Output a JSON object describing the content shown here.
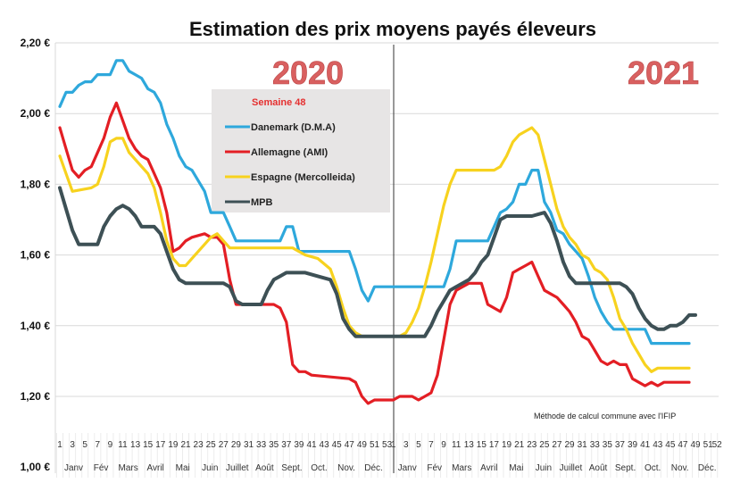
{
  "chart_data": {
    "type": "line",
    "title": "Estimation des prix moyens payés éleveurs",
    "xlabel": "",
    "ylabel": "",
    "ylim": [
      1.0,
      2.2
    ],
    "yticks": [
      "1,00 €",
      "1,20 €",
      "1,40 €",
      "1,60 €",
      "1,80 €",
      "2,00 €",
      "2,20 €"
    ],
    "grid": "horizontal",
    "legend_title": "Semaine 48",
    "legend_placement": "top-center (inside 2020 panel)",
    "annotations": {
      "year1": "2020",
      "year2": "2021",
      "note": "Méthode de calcul commune avec l'IFIP"
    },
    "x_week_labels_2020": [
      "1",
      "3",
      "5",
      "7",
      "9",
      "11",
      "13",
      "15",
      "17",
      "19",
      "21",
      "23",
      "25",
      "27",
      "29",
      "31",
      "33",
      "35",
      "37",
      "39",
      "41",
      "43",
      "45",
      "47",
      "49",
      "51",
      "53"
    ],
    "x_week_labels_2021": [
      "1",
      "3",
      "5",
      "7",
      "9",
      "11",
      "13",
      "15",
      "17",
      "19",
      "21",
      "23",
      "25",
      "27",
      "29",
      "31",
      "33",
      "35",
      "37",
      "39",
      "41",
      "43",
      "45",
      "47",
      "49",
      "51",
      "52"
    ],
    "months": [
      "Janv",
      "Fév",
      "Mars",
      "Avril",
      "Mai",
      "Juin",
      "Juillet",
      "Août",
      "Sept.",
      "Oct.",
      "Nov.",
      "Déc."
    ],
    "series": [
      {
        "name": "Danemark (D.M.A)",
        "color": "#2ea8dc",
        "2020": [
          [
            1,
            2.02
          ],
          [
            2,
            2.06
          ],
          [
            3,
            2.06
          ],
          [
            4,
            2.08
          ],
          [
            5,
            2.09
          ],
          [
            6,
            2.09
          ],
          [
            7,
            2.11
          ],
          [
            9,
            2.11
          ],
          [
            10,
            2.15
          ],
          [
            11,
            2.15
          ],
          [
            12,
            2.12
          ],
          [
            13,
            2.11
          ],
          [
            14,
            2.1
          ],
          [
            15,
            2.07
          ],
          [
            16,
            2.06
          ],
          [
            17,
            2.03
          ],
          [
            18,
            1.97
          ],
          [
            19,
            1.93
          ],
          [
            20,
            1.88
          ],
          [
            21,
            1.85
          ],
          [
            22,
            1.84
          ],
          [
            23,
            1.81
          ],
          [
            24,
            1.78
          ],
          [
            25,
            1.72
          ],
          [
            27,
            1.72
          ],
          [
            28,
            1.68
          ],
          [
            29,
            1.64
          ],
          [
            36,
            1.64
          ],
          [
            37,
            1.68
          ],
          [
            38,
            1.68
          ],
          [
            39,
            1.61
          ],
          [
            47,
            1.61
          ],
          [
            48,
            1.56
          ],
          [
            49,
            1.5
          ],
          [
            50,
            1.47
          ],
          [
            51,
            1.51
          ],
          [
            53,
            1.51
          ]
        ],
        "2021": [
          [
            1,
            1.51
          ],
          [
            9,
            1.51
          ],
          [
            10,
            1.56
          ],
          [
            11,
            1.64
          ],
          [
            16,
            1.64
          ],
          [
            17,
            1.68
          ],
          [
            18,
            1.72
          ],
          [
            19,
            1.73
          ],
          [
            20,
            1.75
          ],
          [
            21,
            1.8
          ],
          [
            22,
            1.8
          ],
          [
            23,
            1.84
          ],
          [
            24,
            1.84
          ],
          [
            25,
            1.75
          ],
          [
            26,
            1.72
          ],
          [
            27,
            1.67
          ],
          [
            28,
            1.66
          ],
          [
            29,
            1.63
          ],
          [
            30,
            1.61
          ],
          [
            31,
            1.59
          ],
          [
            32,
            1.54
          ],
          [
            33,
            1.48
          ],
          [
            34,
            1.44
          ],
          [
            35,
            1.41
          ],
          [
            36,
            1.39
          ],
          [
            41,
            1.39
          ],
          [
            42,
            1.35
          ],
          [
            48,
            1.35
          ]
        ]
      },
      {
        "name": "Allemagne (AMI)",
        "color": "#e31e24",
        "2020": [
          [
            1,
            1.96
          ],
          [
            2,
            1.9
          ],
          [
            3,
            1.84
          ],
          [
            4,
            1.82
          ],
          [
            5,
            1.84
          ],
          [
            6,
            1.85
          ],
          [
            7,
            1.89
          ],
          [
            8,
            1.93
          ],
          [
            9,
            1.99
          ],
          [
            10,
            2.03
          ],
          [
            11,
            1.98
          ],
          [
            12,
            1.93
          ],
          [
            13,
            1.9
          ],
          [
            14,
            1.88
          ],
          [
            15,
            1.87
          ],
          [
            16,
            1.83
          ],
          [
            17,
            1.79
          ],
          [
            18,
            1.72
          ],
          [
            19,
            1.61
          ],
          [
            20,
            1.62
          ],
          [
            21,
            1.64
          ],
          [
            22,
            1.65
          ],
          [
            24,
            1.66
          ],
          [
            25,
            1.65
          ],
          [
            26,
            1.65
          ],
          [
            27,
            1.63
          ],
          [
            28,
            1.53
          ],
          [
            29,
            1.46
          ],
          [
            35,
            1.46
          ],
          [
            36,
            1.45
          ],
          [
            37,
            1.41
          ],
          [
            38,
            1.29
          ],
          [
            39,
            1.27
          ],
          [
            40,
            1.27
          ],
          [
            41,
            1.26
          ],
          [
            47,
            1.25
          ],
          [
            48,
            1.24
          ],
          [
            49,
            1.2
          ],
          [
            50,
            1.18
          ],
          [
            51,
            1.19
          ],
          [
            53,
            1.19
          ]
        ],
        "2021": [
          [
            1,
            1.19
          ],
          [
            2,
            1.2
          ],
          [
            4,
            1.2
          ],
          [
            5,
            1.19
          ],
          [
            6,
            1.2
          ],
          [
            7,
            1.21
          ],
          [
            8,
            1.26
          ],
          [
            9,
            1.36
          ],
          [
            10,
            1.46
          ],
          [
            11,
            1.5
          ],
          [
            12,
            1.51
          ],
          [
            13,
            1.52
          ],
          [
            15,
            1.52
          ],
          [
            16,
            1.46
          ],
          [
            17,
            1.45
          ],
          [
            18,
            1.44
          ],
          [
            19,
            1.48
          ],
          [
            20,
            1.55
          ],
          [
            21,
            1.56
          ],
          [
            22,
            1.57
          ],
          [
            23,
            1.58
          ],
          [
            24,
            1.54
          ],
          [
            25,
            1.5
          ],
          [
            26,
            1.49
          ],
          [
            27,
            1.48
          ],
          [
            28,
            1.46
          ],
          [
            29,
            1.44
          ],
          [
            30,
            1.41
          ],
          [
            31,
            1.37
          ],
          [
            32,
            1.36
          ],
          [
            33,
            1.33
          ],
          [
            34,
            1.3
          ],
          [
            35,
            1.29
          ],
          [
            36,
            1.3
          ],
          [
            37,
            1.29
          ],
          [
            38,
            1.29
          ],
          [
            39,
            1.25
          ],
          [
            40,
            1.24
          ],
          [
            41,
            1.23
          ],
          [
            42,
            1.24
          ],
          [
            43,
            1.23
          ],
          [
            44,
            1.24
          ],
          [
            48,
            1.24
          ]
        ]
      },
      {
        "name": "Espagne (Mercolleida)",
        "color": "#f7d21e",
        "2020": [
          [
            1,
            1.88
          ],
          [
            2,
            1.83
          ],
          [
            3,
            1.78
          ],
          [
            6,
            1.79
          ],
          [
            7,
            1.8
          ],
          [
            8,
            1.85
          ],
          [
            9,
            1.92
          ],
          [
            10,
            1.93
          ],
          [
            11,
            1.93
          ],
          [
            12,
            1.89
          ],
          [
            13,
            1.87
          ],
          [
            15,
            1.83
          ],
          [
            16,
            1.79
          ],
          [
            17,
            1.72
          ],
          [
            18,
            1.64
          ],
          [
            19,
            1.59
          ],
          [
            20,
            1.57
          ],
          [
            21,
            1.57
          ],
          [
            22,
            1.59
          ],
          [
            24,
            1.63
          ],
          [
            25,
            1.65
          ],
          [
            26,
            1.66
          ],
          [
            27,
            1.64
          ],
          [
            28,
            1.62
          ],
          [
            38,
            1.62
          ],
          [
            40,
            1.6
          ],
          [
            42,
            1.59
          ],
          [
            44,
            1.56
          ],
          [
            45,
            1.51
          ],
          [
            46,
            1.45
          ],
          [
            47,
            1.4
          ],
          [
            48,
            1.38
          ],
          [
            49,
            1.37
          ],
          [
            53,
            1.37
          ]
        ],
        "2021": [
          [
            1,
            1.37
          ],
          [
            2,
            1.37
          ],
          [
            3,
            1.38
          ],
          [
            4,
            1.41
          ],
          [
            5,
            1.45
          ],
          [
            6,
            1.51
          ],
          [
            7,
            1.58
          ],
          [
            8,
            1.66
          ],
          [
            9,
            1.74
          ],
          [
            10,
            1.8
          ],
          [
            11,
            1.84
          ],
          [
            17,
            1.84
          ],
          [
            18,
            1.85
          ],
          [
            19,
            1.88
          ],
          [
            20,
            1.92
          ],
          [
            21,
            1.94
          ],
          [
            22,
            1.95
          ],
          [
            23,
            1.96
          ],
          [
            24,
            1.94
          ],
          [
            25,
            1.87
          ],
          [
            26,
            1.8
          ],
          [
            27,
            1.73
          ],
          [
            28,
            1.68
          ],
          [
            29,
            1.65
          ],
          [
            30,
            1.63
          ],
          [
            31,
            1.6
          ],
          [
            32,
            1.59
          ],
          [
            33,
            1.56
          ],
          [
            34,
            1.55
          ],
          [
            35,
            1.53
          ],
          [
            36,
            1.48
          ],
          [
            37,
            1.42
          ],
          [
            38,
            1.39
          ],
          [
            39,
            1.35
          ],
          [
            40,
            1.32
          ],
          [
            41,
            1.29
          ],
          [
            42,
            1.27
          ],
          [
            43,
            1.28
          ],
          [
            48,
            1.28
          ]
        ]
      },
      {
        "name": "MPB",
        "color": "#3d5055",
        "2020": [
          [
            1,
            1.79
          ],
          [
            2,
            1.73
          ],
          [
            3,
            1.67
          ],
          [
            4,
            1.63
          ],
          [
            7,
            1.63
          ],
          [
            8,
            1.68
          ],
          [
            9,
            1.71
          ],
          [
            10,
            1.73
          ],
          [
            11,
            1.74
          ],
          [
            12,
            1.73
          ],
          [
            13,
            1.71
          ],
          [
            14,
            1.68
          ],
          [
            16,
            1.68
          ],
          [
            17,
            1.66
          ],
          [
            18,
            1.61
          ],
          [
            19,
            1.56
          ],
          [
            20,
            1.53
          ],
          [
            21,
            1.52
          ],
          [
            27,
            1.52
          ],
          [
            28,
            1.51
          ],
          [
            29,
            1.47
          ],
          [
            30,
            1.46
          ],
          [
            33,
            1.46
          ],
          [
            34,
            1.5
          ],
          [
            35,
            1.53
          ],
          [
            36,
            1.54
          ],
          [
            37,
            1.55
          ],
          [
            40,
            1.55
          ],
          [
            42,
            1.54
          ],
          [
            44,
            1.53
          ],
          [
            45,
            1.49
          ],
          [
            46,
            1.42
          ],
          [
            47,
            1.39
          ],
          [
            48,
            1.37
          ],
          [
            53,
            1.37
          ]
        ],
        "2021": [
          [
            1,
            1.37
          ],
          [
            6,
            1.37
          ],
          [
            7,
            1.4
          ],
          [
            8,
            1.44
          ],
          [
            9,
            1.47
          ],
          [
            10,
            1.5
          ],
          [
            11,
            1.51
          ],
          [
            12,
            1.52
          ],
          [
            13,
            1.53
          ],
          [
            14,
            1.55
          ],
          [
            15,
            1.58
          ],
          [
            16,
            1.6
          ],
          [
            17,
            1.65
          ],
          [
            18,
            1.7
          ],
          [
            19,
            1.71
          ],
          [
            23,
            1.71
          ],
          [
            25,
            1.72
          ],
          [
            26,
            1.69
          ],
          [
            27,
            1.64
          ],
          [
            28,
            1.58
          ],
          [
            29,
            1.54
          ],
          [
            30,
            1.52
          ],
          [
            37,
            1.52
          ],
          [
            38,
            1.51
          ],
          [
            39,
            1.49
          ],
          [
            40,
            1.45
          ],
          [
            41,
            1.42
          ],
          [
            42,
            1.4
          ],
          [
            43,
            1.39
          ],
          [
            44,
            1.39
          ],
          [
            45,
            1.4
          ],
          [
            46,
            1.4
          ],
          [
            47,
            1.41
          ],
          [
            48,
            1.43
          ],
          [
            49,
            1.43
          ]
        ]
      }
    ]
  }
}
